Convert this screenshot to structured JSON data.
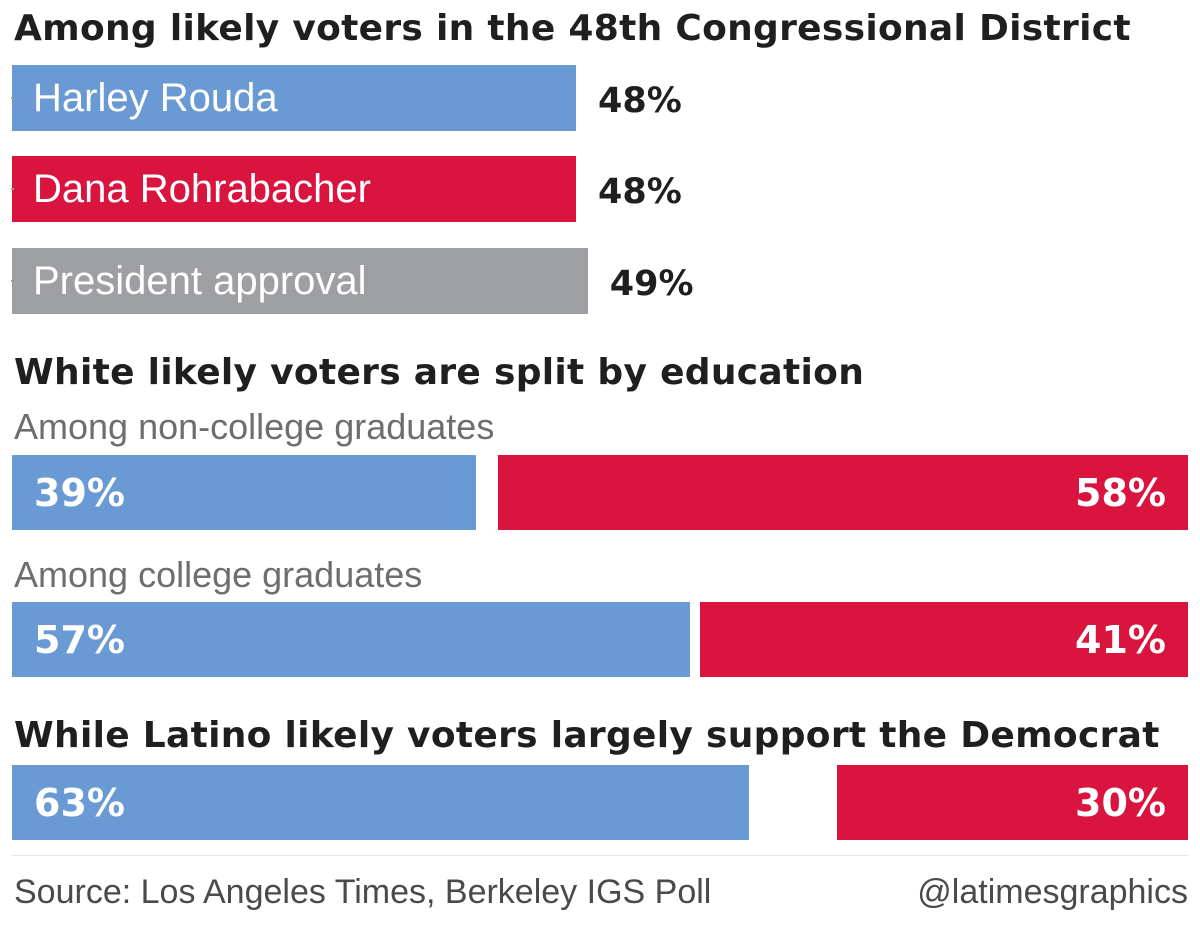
{
  "colors": {
    "dem": "#6a9ad4",
    "rep": "#d8143f",
    "neutral": "#9e9fa3"
  },
  "section1": {
    "heading": "Among likely voters in the 48th Congressional District"
  },
  "section2": {
    "heading": "White likely voters are split by education",
    "sub1": "Among non-college graduates",
    "sub2": "Among college graduates"
  },
  "section3": {
    "heading": "While Latino likely voters largely support the Democrat"
  },
  "footer": {
    "source": "Source: Los Angeles Times, Berkeley IGS Poll",
    "credit": "@latimesgraphics"
  },
  "chart_data": [
    {
      "type": "bar",
      "title": "Among likely voters in the 48th Congressional District",
      "categories": [
        "Harley Rouda",
        "Dana Rohrabacher",
        "President approval"
      ],
      "values": [
        48,
        48,
        49
      ],
      "value_labels": [
        "48%",
        "48%",
        "49%"
      ],
      "colors": [
        "#6a9ad4",
        "#d8143f",
        "#9e9fa3"
      ]
    },
    {
      "type": "bar",
      "title": "White likely voters are split by education",
      "categories": [
        "Among non-college graduates",
        "Among college graduates"
      ],
      "series": [
        {
          "values": [
            39,
            57
          ],
          "labels": [
            "39%",
            "57%"
          ],
          "color": "#6a9ad4"
        },
        {
          "values": [
            58,
            41
          ],
          "labels": [
            "58%",
            "41%"
          ],
          "color": "#d8143f"
        }
      ]
    },
    {
      "type": "bar",
      "title": "While Latino likely voters largely support the Democrat",
      "categories": [
        ""
      ],
      "series": [
        {
          "values": [
            63
          ],
          "labels": [
            "63%"
          ],
          "color": "#6a9ad4"
        },
        {
          "values": [
            30
          ],
          "labels": [
            "30%"
          ],
          "color": "#d8143f"
        }
      ]
    }
  ]
}
